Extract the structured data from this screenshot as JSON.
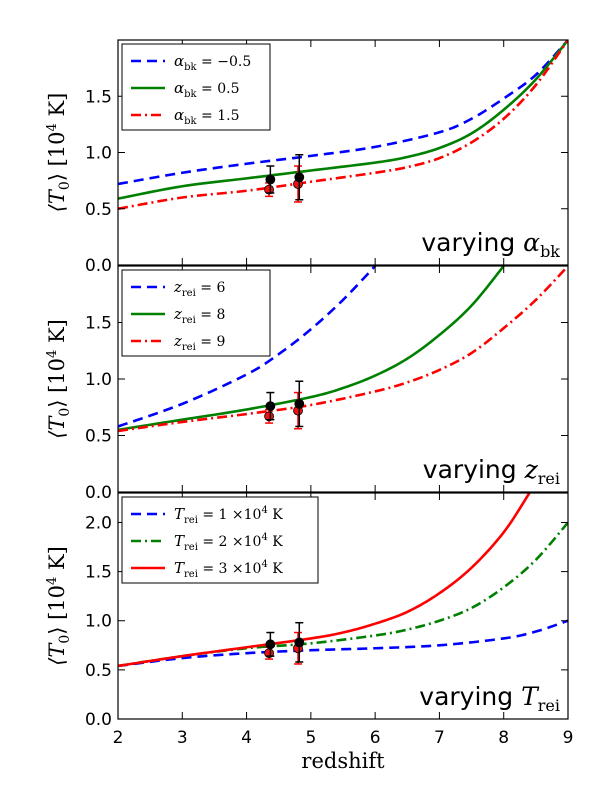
{
  "figure": {
    "xlabel": "redshift",
    "ylabel_parts": [
      "⟨T",
      "0",
      "⟩ [10",
      "4",
      " K]"
    ]
  },
  "chart_data": [
    {
      "type": "line",
      "panel": "top",
      "xlim": [
        2,
        9
      ],
      "ylim": [
        0,
        2.0
      ],
      "yticks": [
        "0.0",
        "0.5",
        "1.0",
        "1.5"
      ],
      "xticks": [],
      "annotation": {
        "text": "varying ",
        "sym": "α",
        "sub": "bk"
      },
      "legend_position": "top-left",
      "series": [
        {
          "name": "α_bk = −0.5",
          "color": "#0000ff",
          "dash": "dashed",
          "x": [
            2,
            3,
            4,
            5,
            6,
            7,
            7.5,
            8,
            8.5,
            9
          ],
          "y": [
            0.72,
            0.82,
            0.9,
            0.97,
            1.05,
            1.18,
            1.3,
            1.48,
            1.69,
            2.0
          ]
        },
        {
          "name": "α_bk = 0.5",
          "color": "#008000",
          "dash": "solid",
          "x": [
            2,
            3,
            4,
            5,
            6,
            6.5,
            7,
            7.5,
            8,
            8.5,
            9
          ],
          "y": [
            0.59,
            0.7,
            0.77,
            0.84,
            0.91,
            0.96,
            1.04,
            1.17,
            1.38,
            1.65,
            2.0
          ]
        },
        {
          "name": "α_bk = 1.5",
          "color": "#ff0000",
          "dash": "dashdot",
          "x": [
            2,
            3,
            4,
            5,
            6,
            6.5,
            7,
            7.5,
            8,
            8.5,
            9
          ],
          "y": [
            0.5,
            0.6,
            0.66,
            0.74,
            0.82,
            0.87,
            0.95,
            1.09,
            1.3,
            1.6,
            2.0
          ]
        }
      ],
      "errorbars": [
        {
          "x": 4.35,
          "y": 0.67,
          "err": 0.06,
          "color": "#ff0000"
        },
        {
          "x": 4.8,
          "y": 0.72,
          "err": 0.16,
          "color": "#ff0000"
        },
        {
          "x": 4.37,
          "y": 0.76,
          "err": 0.12,
          "color": "#000000"
        },
        {
          "x": 4.82,
          "y": 0.78,
          "err": 0.2,
          "color": "#000000"
        }
      ]
    },
    {
      "type": "line",
      "panel": "middle",
      "xlim": [
        2,
        9
      ],
      "ylim": [
        0,
        2.0
      ],
      "yticks": [
        "0.0",
        "0.5",
        "1.0",
        "1.5"
      ],
      "xticks": [],
      "annotation": {
        "text": "varying ",
        "sym": "z",
        "sub": "rei"
      },
      "legend_position": "top-left",
      "series": [
        {
          "name": "z_rei = 6",
          "color": "#0000ff",
          "dash": "dashed",
          "x": [
            2,
            3,
            4,
            4.5,
            5,
            5.5,
            6
          ],
          "y": [
            0.58,
            0.78,
            1.04,
            1.22,
            1.44,
            1.7,
            2.0
          ]
        },
        {
          "name": "z_rei = 8",
          "color": "#008000",
          "dash": "solid",
          "x": [
            2,
            3,
            4,
            5,
            5.5,
            6,
            6.5,
            7,
            7.5,
            8
          ],
          "y": [
            0.55,
            0.64,
            0.73,
            0.84,
            0.92,
            1.03,
            1.18,
            1.39,
            1.65,
            2.0
          ]
        },
        {
          "name": "z_rei = 9",
          "color": "#ff0000",
          "dash": "dashdot",
          "x": [
            2,
            3,
            4,
            5,
            6,
            6.5,
            7,
            7.5,
            8,
            8.5,
            9
          ],
          "y": [
            0.54,
            0.62,
            0.69,
            0.77,
            0.89,
            0.97,
            1.08,
            1.23,
            1.45,
            1.7,
            2.0
          ]
        }
      ],
      "errorbars": [
        {
          "x": 4.35,
          "y": 0.67,
          "err": 0.06,
          "color": "#ff0000"
        },
        {
          "x": 4.8,
          "y": 0.72,
          "err": 0.16,
          "color": "#ff0000"
        },
        {
          "x": 4.37,
          "y": 0.76,
          "err": 0.12,
          "color": "#000000"
        },
        {
          "x": 4.82,
          "y": 0.78,
          "err": 0.2,
          "color": "#000000"
        }
      ]
    },
    {
      "type": "line",
      "panel": "bottom",
      "xlim": [
        2,
        9
      ],
      "ylim": [
        0,
        2.3
      ],
      "yticks": [
        "0.0",
        "0.5",
        "1.0",
        "1.5",
        "2.0"
      ],
      "xticks": [
        "2",
        "3",
        "4",
        "5",
        "6",
        "7",
        "8",
        "9"
      ],
      "annotation": {
        "text": "varying ",
        "sym": "T",
        "sub": "rei"
      },
      "legend_position": "top-left",
      "series": [
        {
          "name": "T_rei = 1 ×10^4 K",
          "color": "#0000ff",
          "dash": "dashed",
          "x": [
            2,
            3,
            4,
            5,
            6,
            7,
            8,
            8.5,
            9
          ],
          "y": [
            0.54,
            0.62,
            0.67,
            0.7,
            0.72,
            0.75,
            0.82,
            0.89,
            1.0
          ]
        },
        {
          "name": "T_rei = 2 ×10^4 K",
          "color": "#008000",
          "dash": "dashdot",
          "x": [
            2,
            3,
            4,
            5,
            6,
            6.5,
            7,
            7.5,
            8,
            8.5,
            9
          ],
          "y": [
            0.54,
            0.64,
            0.72,
            0.77,
            0.85,
            0.91,
            1.0,
            1.13,
            1.34,
            1.62,
            2.0
          ]
        },
        {
          "name": "T_rei = 3 ×10^4 K",
          "color": "#ff0000",
          "dash": "solid",
          "x": [
            2,
            3,
            4,
            5,
            5.5,
            6,
            6.5,
            7,
            7.5,
            8,
            8.4
          ],
          "y": [
            0.54,
            0.64,
            0.73,
            0.82,
            0.88,
            0.97,
            1.09,
            1.28,
            1.54,
            1.9,
            2.3
          ]
        }
      ],
      "errorbars": [
        {
          "x": 4.35,
          "y": 0.67,
          "err": 0.06,
          "color": "#ff0000"
        },
        {
          "x": 4.8,
          "y": 0.72,
          "err": 0.16,
          "color": "#ff0000"
        },
        {
          "x": 4.37,
          "y": 0.76,
          "err": 0.12,
          "color": "#000000"
        },
        {
          "x": 4.82,
          "y": 0.78,
          "err": 0.2,
          "color": "#000000"
        }
      ]
    }
  ],
  "legends": [
    [
      {
        "sym": "α",
        "sub": "bk",
        "rest": " = −0.5"
      },
      {
        "sym": "α",
        "sub": "bk",
        "rest": " = 0.5"
      },
      {
        "sym": "α",
        "sub": "bk",
        "rest": " = 1.5"
      }
    ],
    [
      {
        "sym": "z",
        "sub": "rei",
        "rest": " = 6"
      },
      {
        "sym": "z",
        "sub": "rei",
        "rest": " = 8"
      },
      {
        "sym": "z",
        "sub": "rei",
        "rest": " = 9"
      }
    ],
    [
      {
        "sym": "T",
        "sub": "rei",
        "rest": " = 1 ×10",
        "sup": "4",
        "tail": " K"
      },
      {
        "sym": "T",
        "sub": "rei",
        "rest": " = 2 ×10",
        "sup": "4",
        "tail": " K"
      },
      {
        "sym": "T",
        "sub": "rei",
        "rest": " = 3 ×10",
        "sup": "4",
        "tail": " K"
      }
    ]
  ]
}
